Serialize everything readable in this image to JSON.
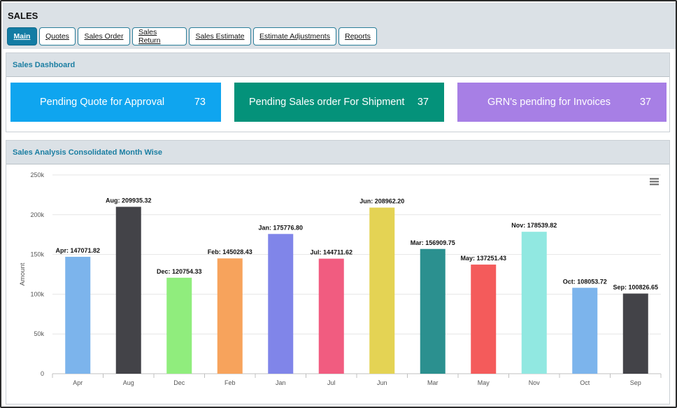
{
  "app": {
    "title": "SALES"
  },
  "tabs": [
    {
      "label": "Main",
      "active": true
    },
    {
      "label": "Quotes",
      "active": false
    },
    {
      "label": "Sales Order",
      "active": false
    },
    {
      "label": "Sales Return",
      "active": false
    },
    {
      "label": "Sales Estimate",
      "active": false
    },
    {
      "label": "Estimate Adjustments",
      "active": false
    },
    {
      "label": "Reports",
      "active": false
    }
  ],
  "dashboard": {
    "title": "Sales Dashboard",
    "cards": [
      {
        "label": "Pending Quote for Approval",
        "count": "73",
        "color": "#0fa5ef"
      },
      {
        "label": "Pending Sales order For Shipment",
        "count": "37",
        "color": "#04927a"
      },
      {
        "label": "GRN's pending for Invoices",
        "count": "37",
        "color": "#a77fe5"
      }
    ]
  },
  "analysis": {
    "title": "Sales Analysis Consolidated Month Wise",
    "menu_icon": "hamburger-menu-icon"
  },
  "chart_data": {
    "type": "bar",
    "ylabel": "Amount",
    "xlabel": "",
    "ylim": [
      0,
      250000
    ],
    "yticks": [
      0,
      50000,
      100000,
      150000,
      200000,
      250000
    ],
    "ytick_labels": [
      "0",
      "50k",
      "100k",
      "150k",
      "200k",
      "250k"
    ],
    "grid": true,
    "categories": [
      "Apr",
      "Aug",
      "Dec",
      "Feb",
      "Jan",
      "Jul",
      "Jun",
      "Mar",
      "May",
      "Nov",
      "Oct",
      "Sep"
    ],
    "values": [
      147071.82,
      209935.32,
      120754.33,
      145028.43,
      175776.8,
      144711.62,
      208962.2,
      156909.75,
      137251.43,
      178539.82,
      108053.72,
      100826.65
    ],
    "data_labels": [
      "Apr: 147071.82",
      "Aug: 209935.32",
      "Dec: 120754.33",
      "Feb: 145028.43",
      "Jan: 175776.80",
      "Jul: 144711.62",
      "Jun: 208962.20",
      "Mar: 156909.75",
      "May: 137251.43",
      "Nov: 178539.82",
      "Oct: 108053.72",
      "Sep: 100826.65"
    ],
    "colors": [
      "#7cb4ec",
      "#434348",
      "#90ed7d",
      "#f7a35c",
      "#8085e9",
      "#f15c80",
      "#e4d354",
      "#2b908f",
      "#f45b5b",
      "#91e8e1",
      "#7cb4ec",
      "#434348"
    ]
  }
}
